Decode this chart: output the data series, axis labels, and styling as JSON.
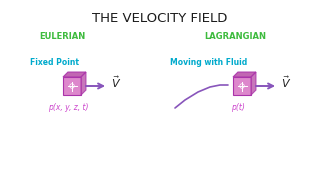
{
  "title": "THE VELOCITY FIELD",
  "title_color": "#1a1a1a",
  "title_fontsize": 9.5,
  "eulerian_label": "EULERIAN",
  "lagrangian_label": "LAGRANGIAN",
  "header_color": "#3dbb3d",
  "fixed_point_text": "Fixed Point",
  "moving_fluid_text": "Moving with Fluid",
  "subtext_color": "#00aacc",
  "p_eulerian": "p(x, y, z, t)",
  "p_lagrangian": "p(t)",
  "p_color": "#cc44cc",
  "background_color": "#ffffff",
  "arrow_color": "#8855bb",
  "cube_front_color": "#dd88cc",
  "cube_dark_color": "#bb55aa",
  "cube_edge_color": "#aa33aa"
}
